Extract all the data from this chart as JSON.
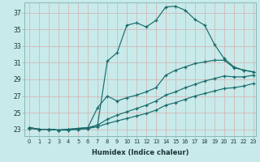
{
  "xlabel": "Humidex (Indice chaleur)",
  "bg_color": "#c8eaea",
  "line_color": "#1a6b6b",
  "grid_color": "#b8d8d8",
  "xlim_min": -0.5,
  "xlim_max": 23.3,
  "ylim_min": 22.2,
  "ylim_max": 38.2,
  "yticks": [
    23,
    25,
    27,
    29,
    31,
    33,
    35,
    37
  ],
  "xticks": [
    0,
    1,
    2,
    3,
    4,
    5,
    6,
    7,
    8,
    9,
    10,
    11,
    12,
    13,
    14,
    15,
    16,
    17,
    18,
    19,
    20,
    21,
    22,
    23
  ],
  "line1_x": [
    0,
    1,
    2,
    3,
    4,
    5,
    6,
    7,
    8,
    9,
    10,
    11,
    12,
    13,
    14,
    15,
    16,
    17,
    18,
    19,
    20,
    21,
    22,
    23
  ],
  "line1_y": [
    23.1,
    23.0,
    23.0,
    22.9,
    22.9,
    23.0,
    23.1,
    23.5,
    31.2,
    32.2,
    35.5,
    35.8,
    35.3,
    36.1,
    37.7,
    37.8,
    37.3,
    36.2,
    35.5,
    33.2,
    31.5,
    30.5,
    30.1,
    29.9
  ],
  "line2_x": [
    0,
    1,
    2,
    3,
    4,
    5,
    6,
    7,
    8,
    9,
    10,
    11,
    12,
    13,
    14,
    15,
    16,
    17,
    18,
    19,
    20,
    21,
    22,
    23
  ],
  "line2_y": [
    23.2,
    23.0,
    23.0,
    22.9,
    23.0,
    23.1,
    23.2,
    25.6,
    27.0,
    26.4,
    26.8,
    27.1,
    27.5,
    28.0,
    29.5,
    30.1,
    30.5,
    30.9,
    31.1,
    31.3,
    31.3,
    30.4,
    30.1,
    29.9
  ],
  "line3_x": [
    0,
    1,
    2,
    3,
    4,
    5,
    6,
    7,
    8,
    9,
    10,
    11,
    12,
    13,
    14,
    15,
    16,
    17,
    18,
    19,
    20,
    21,
    22,
    23
  ],
  "line3_y": [
    23.2,
    23.0,
    23.0,
    22.9,
    23.0,
    23.1,
    23.2,
    23.5,
    24.2,
    24.7,
    25.1,
    25.5,
    25.9,
    26.4,
    27.1,
    27.5,
    28.0,
    28.4,
    28.8,
    29.1,
    29.4,
    29.3,
    29.3,
    29.5
  ],
  "line4_x": [
    0,
    1,
    2,
    3,
    4,
    5,
    6,
    7,
    8,
    9,
    10,
    11,
    12,
    13,
    14,
    15,
    16,
    17,
    18,
    19,
    20,
    21,
    22,
    23
  ],
  "line4_y": [
    23.2,
    23.0,
    23.0,
    22.9,
    23.0,
    23.0,
    23.1,
    23.3,
    23.7,
    24.0,
    24.3,
    24.6,
    24.9,
    25.3,
    25.9,
    26.2,
    26.6,
    27.0,
    27.3,
    27.6,
    27.9,
    28.0,
    28.2,
    28.5
  ]
}
